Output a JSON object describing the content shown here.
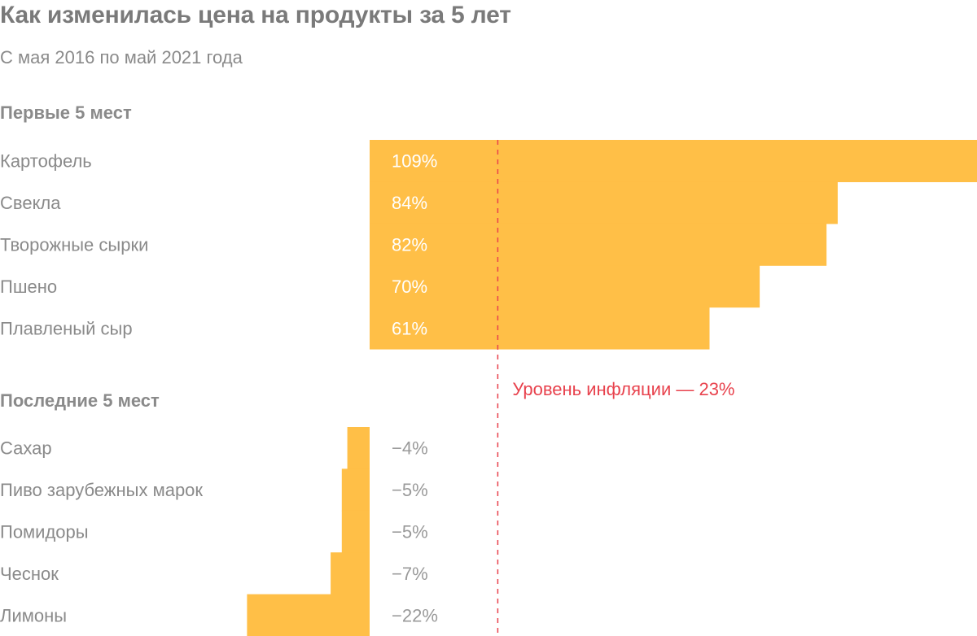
{
  "title": "Как изменилась цена на продукты за 5 лет",
  "subtitle": "С мая 2016 по май 2021 года",
  "colors": {
    "bar": "#ffbf47",
    "inflation": "#e8424d",
    "text": "#8a8a8a"
  },
  "chart_data": {
    "type": "bar",
    "orientation": "horizontal",
    "unit": "%",
    "groups": [
      {
        "title": "Первые 5 мест",
        "categories": [
          "Картофель",
          "Свекла",
          "Творожные сырки",
          "Пшено",
          "Плавленый сыр"
        ],
        "values": [
          109,
          84,
          82,
          70,
          61
        ],
        "labels": [
          "109%",
          "84%",
          "82%",
          "70%",
          "61%"
        ]
      },
      {
        "title": "Последние 5 мест",
        "categories": [
          "Сахар",
          "Пиво зарубежных марок",
          "Помидоры",
          "Чеснок",
          "Лимоны"
        ],
        "values": [
          -4,
          -5,
          -5,
          -7,
          -22
        ],
        "labels": [
          "−4%",
          "−5%",
          "−5%",
          "−7%",
          "−22%"
        ]
      }
    ],
    "reference_line": {
      "value": 23,
      "label": "Уровень инфляции — 23%"
    }
  }
}
